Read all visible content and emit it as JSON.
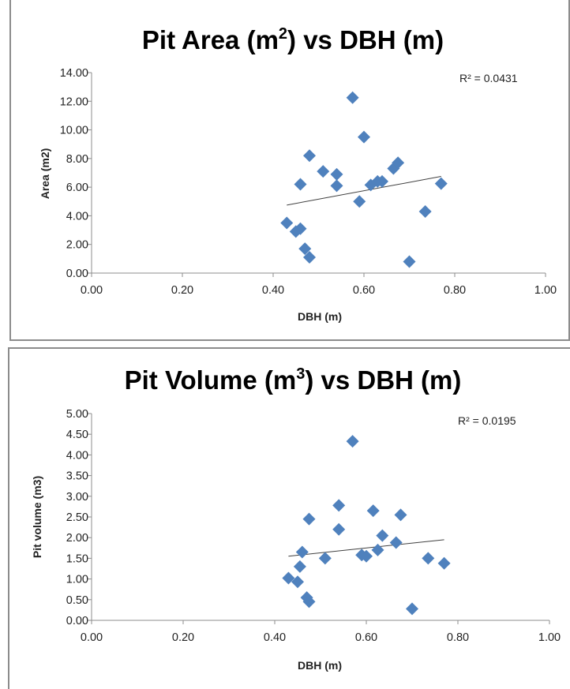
{
  "chart_data": [
    {
      "type": "scatter",
      "title": "Pit Area (m",
      "title_sup": "2",
      "title_suffix": ") vs DBH (m)",
      "xlabel": "DBH (m)",
      "ylabel": "Area (m2)",
      "xlim": [
        0,
        1
      ],
      "ylim": [
        0,
        14
      ],
      "xticks": [
        "0.00",
        "0.20",
        "0.40",
        "0.60",
        "0.80",
        "1.00"
      ],
      "yticks": [
        "0.00",
        "2.00",
        "4.00",
        "6.00",
        "8.00",
        "10.00",
        "12.00",
        "14.00"
      ],
      "marker_color": "#4f81bd",
      "trend_color": "#404040",
      "r2_label": "R² = 0.0431",
      "trendline": {
        "x": [
          0.43,
          0.77
        ],
        "y": [
          4.75,
          6.75
        ]
      },
      "points": [
        {
          "x": 0.43,
          "y": 3.5
        },
        {
          "x": 0.45,
          "y": 2.9
        },
        {
          "x": 0.46,
          "y": 6.2
        },
        {
          "x": 0.46,
          "y": 3.1
        },
        {
          "x": 0.47,
          "y": 1.7
        },
        {
          "x": 0.48,
          "y": 1.1
        },
        {
          "x": 0.48,
          "y": 8.2
        },
        {
          "x": 0.51,
          "y": 7.1
        },
        {
          "x": 0.54,
          "y": 6.9
        },
        {
          "x": 0.54,
          "y": 6.1
        },
        {
          "x": 0.575,
          "y": 12.25
        },
        {
          "x": 0.59,
          "y": 5.0
        },
        {
          "x": 0.6,
          "y": 9.5
        },
        {
          "x": 0.615,
          "y": 6.15
        },
        {
          "x": 0.63,
          "y": 6.4
        },
        {
          "x": 0.64,
          "y": 6.4
        },
        {
          "x": 0.665,
          "y": 7.3
        },
        {
          "x": 0.675,
          "y": 7.7
        },
        {
          "x": 0.7,
          "y": 0.8
        },
        {
          "x": 0.735,
          "y": 4.3
        },
        {
          "x": 0.77,
          "y": 6.25
        }
      ]
    },
    {
      "type": "scatter",
      "title": "Pit Volume (m",
      "title_sup": "3",
      "title_suffix": ") vs DBH (m)",
      "xlabel": "DBH (m)",
      "ylabel": "Pit volume (m3)",
      "xlim": [
        0,
        1
      ],
      "ylim": [
        0,
        5
      ],
      "xticks": [
        "0.00",
        "0.20",
        "0.40",
        "0.60",
        "0.80",
        "1.00"
      ],
      "yticks": [
        "0.00",
        "0.50",
        "1.00",
        "1.50",
        "2.00",
        "2.50",
        "3.00",
        "3.50",
        "4.00",
        "4.50",
        "5.00"
      ],
      "marker_color": "#4f81bd",
      "trend_color": "#404040",
      "r2_label": "R² = 0.0195",
      "trendline": {
        "x": [
          0.43,
          0.77
        ],
        "y": [
          1.55,
          1.95
        ]
      },
      "points": [
        {
          "x": 0.43,
          "y": 1.02
        },
        {
          "x": 0.45,
          "y": 0.93
        },
        {
          "x": 0.455,
          "y": 1.3
        },
        {
          "x": 0.46,
          "y": 1.65
        },
        {
          "x": 0.47,
          "y": 0.55
        },
        {
          "x": 0.475,
          "y": 0.45
        },
        {
          "x": 0.475,
          "y": 2.45
        },
        {
          "x": 0.51,
          "y": 1.5
        },
        {
          "x": 0.54,
          "y": 2.78
        },
        {
          "x": 0.54,
          "y": 2.2
        },
        {
          "x": 0.57,
          "y": 4.33
        },
        {
          "x": 0.59,
          "y": 1.58
        },
        {
          "x": 0.6,
          "y": 1.55
        },
        {
          "x": 0.615,
          "y": 2.65
        },
        {
          "x": 0.625,
          "y": 1.7
        },
        {
          "x": 0.635,
          "y": 2.05
        },
        {
          "x": 0.665,
          "y": 1.88
        },
        {
          "x": 0.675,
          "y": 2.55
        },
        {
          "x": 0.7,
          "y": 0.28
        },
        {
          "x": 0.735,
          "y": 1.5
        },
        {
          "x": 0.77,
          "y": 1.38
        }
      ]
    }
  ]
}
